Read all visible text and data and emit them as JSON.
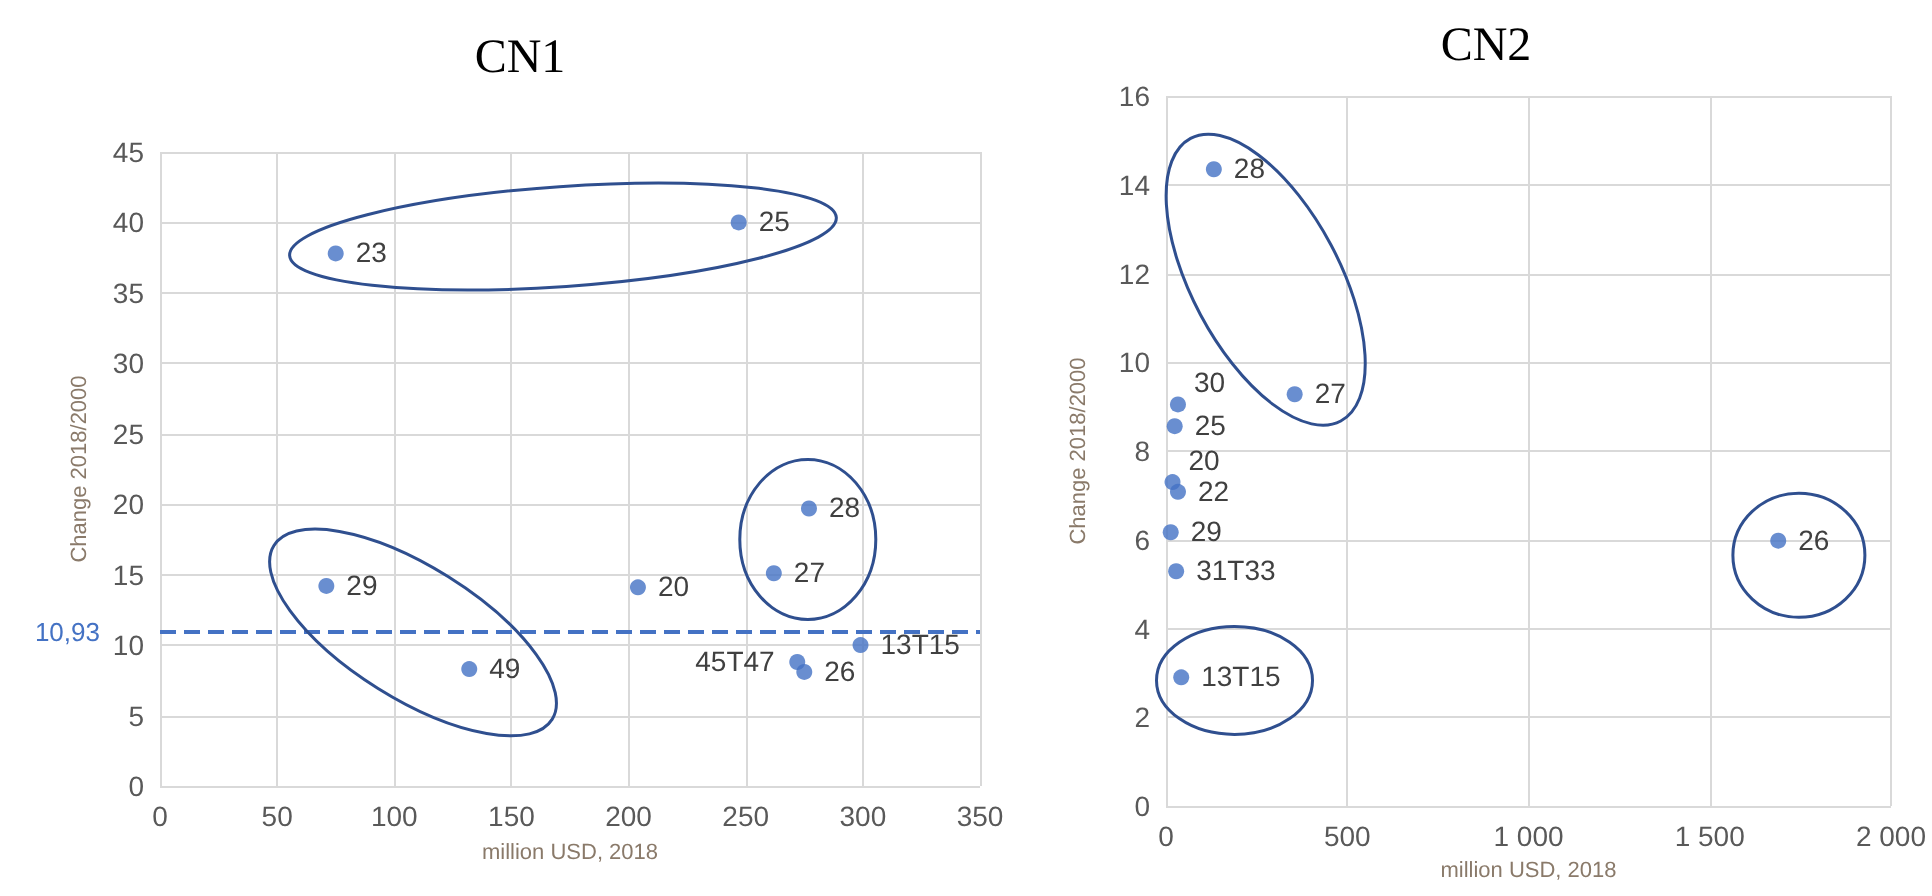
{
  "chart_data": [
    {
      "type": "scatter",
      "title": "CN1",
      "xlabel": "million USD, 2018",
      "ylabel": "Change 2018/2000",
      "marker": "circle",
      "grid": true,
      "x": [
        75,
        247,
        71,
        132,
        204,
        277,
        262,
        272,
        275,
        299
      ],
      "series": [
        {
          "color": "#4472c4",
          "values": [
            37.8,
            40,
            14.2,
            8.3,
            14.1,
            19.7,
            15.1,
            8.8,
            8.1,
            10
          ]
        }
      ],
      "xlim": [
        0,
        350
      ],
      "xticks": [
        0,
        50,
        100,
        150,
        200,
        250,
        300,
        350
      ],
      "ylim": [
        0,
        45
      ],
      "yticks": [
        0,
        5,
        10,
        15,
        20,
        25,
        30,
        35,
        40,
        45
      ],
      "ref_lines": [
        {
          "axis": "y",
          "value": 10.93,
          "label": "10,93",
          "color": "#4472c4",
          "line_style": "dashed"
        }
      ],
      "annotations": [
        {
          "text": "23",
          "x": 75,
          "y": 37.8
        },
        {
          "text": "25",
          "x": 247,
          "y": 40
        },
        {
          "text": "29",
          "x": 71,
          "y": 14.2
        },
        {
          "text": "49",
          "x": 132,
          "y": 8.3
        },
        {
          "text": "20",
          "x": 204,
          "y": 14.1
        },
        {
          "text": "28",
          "x": 277,
          "y": 19.7
        },
        {
          "text": "27",
          "x": 262,
          "y": 15.1
        },
        {
          "text": "45T47",
          "x": 272,
          "y": 8.8
        },
        {
          "text": "26",
          "x": 275,
          "y": 8.1
        },
        {
          "text": "13T15",
          "x": 299,
          "y": 10
        }
      ]
    },
    {
      "type": "scatter",
      "title": "CN2",
      "xlabel": "million USD, 2018",
      "ylabel": "Change 2018/2000",
      "marker": "circle",
      "grid": true,
      "x": [
        132,
        355,
        33,
        24,
        18,
        33,
        13,
        28,
        42,
        1689
      ],
      "series": [
        {
          "color": "#4472c4",
          "values": [
            14.35,
            9.28,
            9.05,
            8.56,
            7.3,
            7.08,
            6.17,
            5.29,
            2.9,
            5.98
          ]
        }
      ],
      "xlim": [
        0,
        2000
      ],
      "xticks": [
        0,
        500,
        {
          "value": 1000,
          "label": "1 000"
        },
        {
          "value": 1500,
          "label": "1 500"
        },
        {
          "value": 2000,
          "label": "2 000"
        }
      ],
      "ylim": [
        0,
        16
      ],
      "yticks": [
        0,
        2,
        4,
        6,
        8,
        10,
        12,
        14,
        16
      ],
      "annotations": [
        {
          "text": "28",
          "x": 132,
          "y": 14.35
        },
        {
          "text": "27",
          "x": 355,
          "y": 9.28
        },
        {
          "text": "30",
          "x": 33,
          "y": 9.05
        },
        {
          "text": "25",
          "x": 24,
          "y": 8.56
        },
        {
          "text": "20",
          "x": 18,
          "y": 7.3
        },
        {
          "text": "22",
          "x": 33,
          "y": 7.08
        },
        {
          "text": "29",
          "x": 13,
          "y": 6.17
        },
        {
          "text": "31T33",
          "x": 28,
          "y": 5.29
        },
        {
          "text": "13T15",
          "x": 42,
          "y": 2.9
        },
        {
          "text": "26",
          "x": 1689,
          "y": 5.98
        }
      ]
    }
  ]
}
